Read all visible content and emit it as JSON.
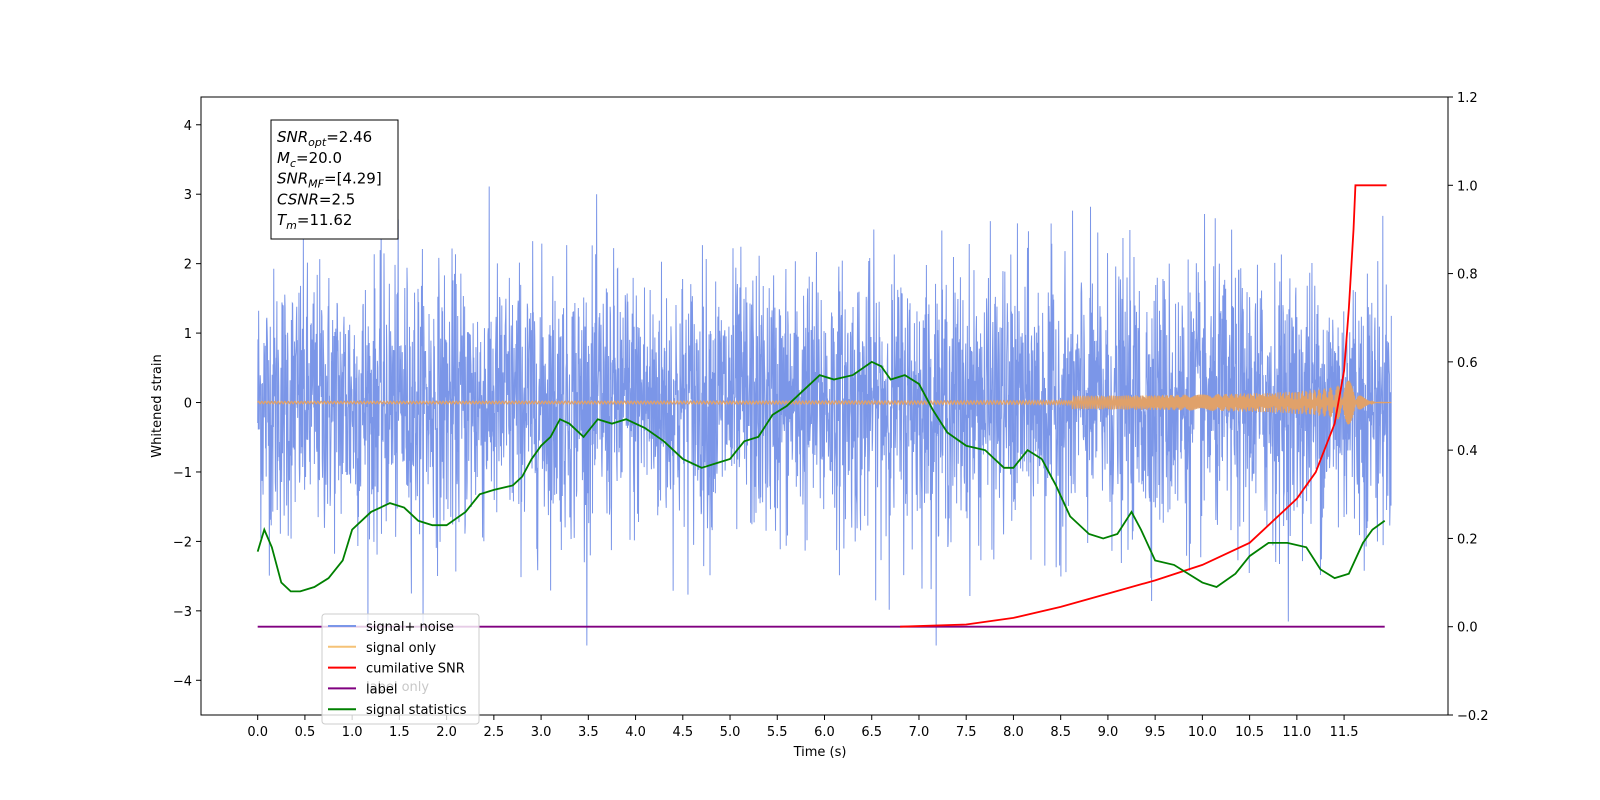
{
  "chart_data": {
    "type": "line",
    "xlabel": "Time (s)",
    "ylabel": "Whitened strain",
    "xlim": [
      -0.6,
      12.6
    ],
    "ylim": [
      -4.5,
      4.4
    ],
    "y2lim": [
      -0.2,
      1.2
    ],
    "x_ticks": [
      "0.0",
      "0.5",
      "1.0",
      "1.5",
      "2.0",
      "2.5",
      "3.0",
      "3.5",
      "4.0",
      "4.5",
      "5.0",
      "5.5",
      "6.0",
      "6.5",
      "7.0",
      "7.5",
      "8.0",
      "8.5",
      "9.0",
      "9.5",
      "10.0",
      "10.5",
      "11.0",
      "11.5"
    ],
    "y_ticks": [
      "4",
      "3",
      "2",
      "1",
      "0",
      "−1",
      "−2",
      "−3",
      "−4"
    ],
    "y2_ticks": [
      "1.2",
      "1.0",
      "0.8",
      "0.6",
      "0.4",
      "0.2",
      "0.0",
      "−0.2"
    ],
    "grid": false,
    "legend_position": "lower-left",
    "annotation": {
      "lines": [
        {
          "base": "SNR",
          "sub": "opt",
          "value": "=2.46"
        },
        {
          "base": "M",
          "sub": "c",
          "value": "=20.0"
        },
        {
          "base": "SNR",
          "sub": "MF",
          "value": "=[4.29]"
        },
        {
          "base": "CSNR",
          "sub": "",
          "value": "=2.5"
        },
        {
          "base": "T",
          "sub": "m",
          "value": "=11.62"
        }
      ]
    },
    "legend": [
      {
        "label": "signal+ noise",
        "color": "#7b96e8"
      },
      {
        "label": "signal only",
        "color": "#f5c277"
      },
      {
        "label": "cumilative SNR",
        "color": "#ff0000"
      },
      {
        "label": "label",
        "color": "#800080"
      },
      {
        "label": "signal statistics",
        "color": "#008000"
      }
    ],
    "hidden_label": "label only",
    "series": [
      {
        "name": "signal+ noise",
        "axis": "left",
        "color": "#7b96e8",
        "x_range": [
          0.0,
          12.0
        ],
        "envelope_upper": 2.6,
        "envelope_lower": -2.6,
        "max": 3.66,
        "min": -4.1
      },
      {
        "name": "signal only",
        "axis": "left",
        "color": "#e0a16a",
        "x_range": [
          0.0,
          12.0
        ],
        "peak_time": 11.62,
        "peak_amplitude": 0.55
      },
      {
        "name": "cumilative SNR",
        "axis": "right",
        "color": "#ff0000",
        "x": [
          6.8,
          7.5,
          8.0,
          8.5,
          9.0,
          9.5,
          10.0,
          10.5,
          11.0,
          11.2,
          11.4,
          11.5,
          11.55,
          11.6,
          11.62,
          11.8,
          11.95
        ],
        "y": [
          0.0,
          0.005,
          0.02,
          0.045,
          0.075,
          0.105,
          0.14,
          0.19,
          0.29,
          0.35,
          0.46,
          0.58,
          0.72,
          0.9,
          1.0,
          1.0,
          1.0
        ]
      },
      {
        "name": "label",
        "axis": "right",
        "color": "#800080",
        "x": [
          0.0,
          11.93
        ],
        "y": [
          0.0,
          0.0
        ]
      },
      {
        "name": "signal statistics",
        "axis": "right",
        "color": "#008000",
        "x": [
          0.0,
          0.07,
          0.15,
          0.25,
          0.35,
          0.45,
          0.6,
          0.75,
          0.9,
          1.0,
          1.2,
          1.4,
          1.55,
          1.7,
          1.85,
          2.0,
          2.2,
          2.35,
          2.5,
          2.7,
          2.8,
          2.9,
          3.0,
          3.1,
          3.2,
          3.3,
          3.45,
          3.6,
          3.75,
          3.9,
          4.1,
          4.3,
          4.5,
          4.7,
          4.85,
          5.0,
          5.15,
          5.3,
          5.45,
          5.6,
          5.8,
          5.95,
          6.1,
          6.3,
          6.5,
          6.6,
          6.7,
          6.85,
          7.0,
          7.15,
          7.3,
          7.5,
          7.7,
          7.9,
          8.0,
          8.15,
          8.3,
          8.45,
          8.6,
          8.8,
          8.95,
          9.1,
          9.25,
          9.35,
          9.5,
          9.7,
          9.85,
          10.0,
          10.15,
          10.35,
          10.5,
          10.7,
          10.9,
          11.1,
          11.25,
          11.4,
          11.55,
          11.7,
          11.8,
          11.93
        ],
        "y": [
          0.17,
          0.22,
          0.18,
          0.1,
          0.08,
          0.08,
          0.09,
          0.11,
          0.15,
          0.22,
          0.26,
          0.28,
          0.27,
          0.24,
          0.23,
          0.23,
          0.26,
          0.3,
          0.31,
          0.32,
          0.34,
          0.38,
          0.41,
          0.43,
          0.47,
          0.46,
          0.43,
          0.47,
          0.46,
          0.47,
          0.45,
          0.42,
          0.38,
          0.36,
          0.37,
          0.38,
          0.42,
          0.43,
          0.48,
          0.5,
          0.54,
          0.57,
          0.56,
          0.57,
          0.6,
          0.59,
          0.56,
          0.57,
          0.55,
          0.49,
          0.44,
          0.41,
          0.4,
          0.36,
          0.36,
          0.4,
          0.38,
          0.32,
          0.25,
          0.21,
          0.2,
          0.21,
          0.26,
          0.22,
          0.15,
          0.14,
          0.12,
          0.1,
          0.09,
          0.12,
          0.16,
          0.19,
          0.19,
          0.18,
          0.13,
          0.11,
          0.12,
          0.19,
          0.22,
          0.24
        ]
      }
    ]
  }
}
